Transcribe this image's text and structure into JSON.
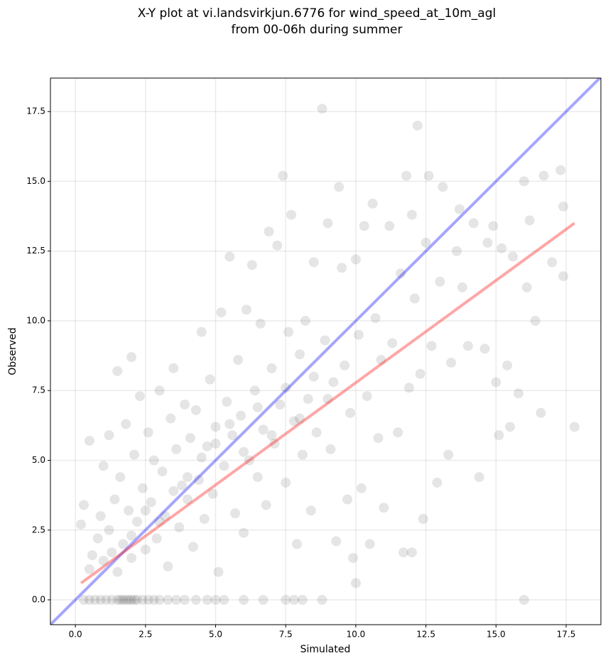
{
  "chart_data": {
    "type": "scatter",
    "title": [
      "X-Y plot at vi.landsvirkjun.6776 for wind_speed_at_10m_agl",
      "from 00-06h during summer"
    ],
    "xlabel": "Simulated",
    "ylabel": "Observed",
    "xlim": [
      -0.89,
      18.74
    ],
    "ylim": [
      -0.89,
      18.7
    ],
    "xticks": [
      {
        "value": 0,
        "label": "0.0"
      },
      2.5,
      {
        "value": 5,
        "label": "5.0"
      },
      7.5,
      {
        "value": 10,
        "label": "10.0"
      },
      12.5,
      {
        "value": 15,
        "label": "15.0"
      },
      17.5
    ],
    "yticks": [
      {
        "value": 0,
        "label": "0.0"
      },
      2.5,
      {
        "value": 5,
        "label": "5.0"
      },
      7.5,
      {
        "value": 10,
        "label": "10.0"
      },
      12.5,
      {
        "value": 15,
        "label": "15.0"
      },
      17.5
    ],
    "grid": true,
    "series": [
      {
        "type": "scatter",
        "color": "#000000",
        "x": [
          0.2,
          0.3,
          0.5,
          0.5,
          0.6,
          0.8,
          0.9,
          1.0,
          1.0,
          1.2,
          1.2,
          1.4,
          1.5,
          1.5,
          1.6,
          1.7,
          1.8,
          1.9,
          2.0,
          2.0,
          2.1,
          2.2,
          2.3,
          2.4,
          2.5,
          2.6,
          2.7,
          2.8,
          2.9,
          3.0,
          3.1,
          3.2,
          3.3,
          3.4,
          3.5,
          3.6,
          3.7,
          3.8,
          3.9,
          4.0,
          4.1,
          4.2,
          4.3,
          4.4,
          4.5,
          4.6,
          4.7,
          4.8,
          4.9,
          5.0,
          5.1,
          5.2,
          5.3,
          5.4,
          5.5,
          5.6,
          5.7,
          5.8,
          5.9,
          6.0,
          6.1,
          6.2,
          6.3,
          6.4,
          6.5,
          6.6,
          6.7,
          6.8,
          6.9,
          7.0,
          7.1,
          7.2,
          7.3,
          7.4,
          7.5,
          7.6,
          7.7,
          7.8,
          7.9,
          8.0,
          8.1,
          8.2,
          8.3,
          8.4,
          8.5,
          8.6,
          8.8,
          8.9,
          9.0,
          9.1,
          9.2,
          9.3,
          9.4,
          9.5,
          9.6,
          9.7,
          9.8,
          9.9,
          10.0,
          10.0,
          10.1,
          10.2,
          10.3,
          10.4,
          10.5,
          10.6,
          10.7,
          10.8,
          10.9,
          11.0,
          11.2,
          11.3,
          11.5,
          11.6,
          11.7,
          11.8,
          11.9,
          12.0,
          12.0,
          12.1,
          12.2,
          12.3,
          12.4,
          12.5,
          12.6,
          12.7,
          12.9,
          13.0,
          13.1,
          13.3,
          13.4,
          13.6,
          13.7,
          13.8,
          14.0,
          14.2,
          14.4,
          14.6,
          14.7,
          14.9,
          15.0,
          15.1,
          15.2,
          15.4,
          15.5,
          15.6,
          15.8,
          16.0,
          16.0,
          16.1,
          16.2,
          16.4,
          16.6,
          16.7,
          17.0,
          17.3,
          17.4,
          17.8,
          17.4,
          1.3,
          2.0,
          2.5,
          3.0,
          3.5,
          4.0,
          4.5,
          5.0,
          5.5,
          6.0,
          6.5,
          7.0,
          7.5,
          8.0,
          8.5,
          9.0,
          0.3,
          0.5,
          0.7,
          0.9,
          1.1,
          1.3,
          1.5,
          1.6,
          1.7,
          1.8,
          1.9,
          2.0,
          2.1,
          2.2,
          2.4,
          2.6,
          2.8,
          3.0,
          3.3,
          3.6,
          3.9,
          4.3,
          4.7,
          5.0,
          5.3,
          6.0,
          6.7,
          7.5,
          7.8,
          8.1,
          8.8
        ],
        "values": [
          2.7,
          3.4,
          5.7,
          1.1,
          1.6,
          2.2,
          3.0,
          4.8,
          1.4,
          5.9,
          2.5,
          3.6,
          8.2,
          1.0,
          4.4,
          2.0,
          6.3,
          3.2,
          8.7,
          1.5,
          5.2,
          2.8,
          7.3,
          4.0,
          1.8,
          6.0,
          3.5,
          5.0,
          2.2,
          7.5,
          4.6,
          3.0,
          1.2,
          6.5,
          8.3,
          5.4,
          2.6,
          4.1,
          7.0,
          3.6,
          5.8,
          1.9,
          6.8,
          4.3,
          9.6,
          2.9,
          5.5,
          7.9,
          3.8,
          6.2,
          1.0,
          10.3,
          4.8,
          7.1,
          12.3,
          5.9,
          3.1,
          8.6,
          6.6,
          2.4,
          10.4,
          5.0,
          12.0,
          7.5,
          4.4,
          9.9,
          6.1,
          3.4,
          13.2,
          8.3,
          5.6,
          12.7,
          7.0,
          15.2,
          4.2,
          9.6,
          13.8,
          6.4,
          2.0,
          8.8,
          5.2,
          10.0,
          7.2,
          3.2,
          12.1,
          6.0,
          17.6,
          9.3,
          13.5,
          5.4,
          7.8,
          2.1,
          14.8,
          11.9,
          8.4,
          3.6,
          6.7,
          1.5,
          12.2,
          0.6,
          9.5,
          4.0,
          13.4,
          7.3,
          2.0,
          14.2,
          10.1,
          5.8,
          8.6,
          3.3,
          13.4,
          9.2,
          6.0,
          11.7,
          1.7,
          15.2,
          7.6,
          1.7,
          13.8,
          10.8,
          17.0,
          8.1,
          2.9,
          12.8,
          15.2,
          9.1,
          4.2,
          11.4,
          14.8,
          5.2,
          8.5,
          12.5,
          14.0,
          11.2,
          9.1,
          13.5,
          4.4,
          9.0,
          12.8,
          13.4,
          7.8,
          5.9,
          12.6,
          8.4,
          6.2,
          12.3,
          7.4,
          15.0,
          0.0,
          11.2,
          13.6,
          10.0,
          6.7,
          15.2,
          12.1,
          15.4,
          11.6,
          6.2,
          14.1,
          1.7,
          2.3,
          3.2,
          2.8,
          3.9,
          4.4,
          5.1,
          5.6,
          6.3,
          5.3,
          6.9,
          5.9,
          7.6,
          6.5,
          8.0,
          7.2,
          0,
          0,
          0,
          0,
          0,
          0,
          0,
          0,
          0,
          0,
          0,
          0,
          0,
          0,
          0,
          0,
          0,
          0,
          0,
          0,
          0,
          0,
          0,
          0,
          0,
          0,
          0,
          0,
          0,
          0,
          0
        ]
      },
      {
        "type": "line",
        "color": "#0000ff",
        "x": [
          -0.89,
          18.74
        ],
        "values": [
          -0.89,
          18.74
        ]
      },
      {
        "type": "line",
        "color": "#ff0000",
        "x": [
          0.2,
          17.8
        ],
        "values": [
          0.6,
          13.5
        ]
      }
    ]
  }
}
